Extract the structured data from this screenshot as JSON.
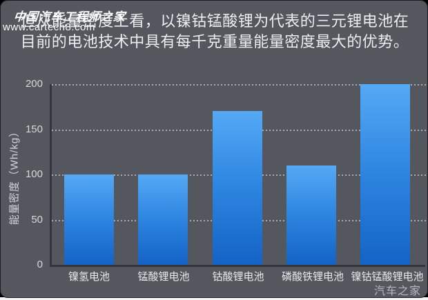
{
  "page": {
    "background": "#000000",
    "panel_background": "#54575d",
    "accent_bar_top": "#55a9f5",
    "accent_bar_bottom": "#1463c6",
    "axis_color": "#33373c"
  },
  "headline": {
    "line1": "但从能量密度上看，以镍钴锰酸锂为代表的三元锂电池在",
    "line2": "目前的电池技术中具有每千克重量能量密度最大的优势。"
  },
  "watermarks": {
    "calligraphy_brand": "中国汽车工程师之家",
    "site_url": "www.cartech8.com",
    "corner_brand": "汽车之家"
  },
  "chart_data": {
    "type": "bar",
    "title": "",
    "categories": [
      "镍氢电池",
      "锰酸锂电池",
      "钴酸锂电池",
      "磷酸铁锂电池",
      "镍钴锰酸锂电池"
    ],
    "values": [
      100,
      100,
      170,
      110,
      200
    ],
    "xlabel": "",
    "ylabel": "能量密度（Wh/kg）",
    "yticks": [
      0,
      50,
      100,
      150,
      200
    ],
    "ylim": [
      0,
      200
    ],
    "grid": "horizontal-dashed",
    "legend": "none",
    "bar_color_gradient": [
      "#55a9f5",
      "#1463c6"
    ]
  }
}
